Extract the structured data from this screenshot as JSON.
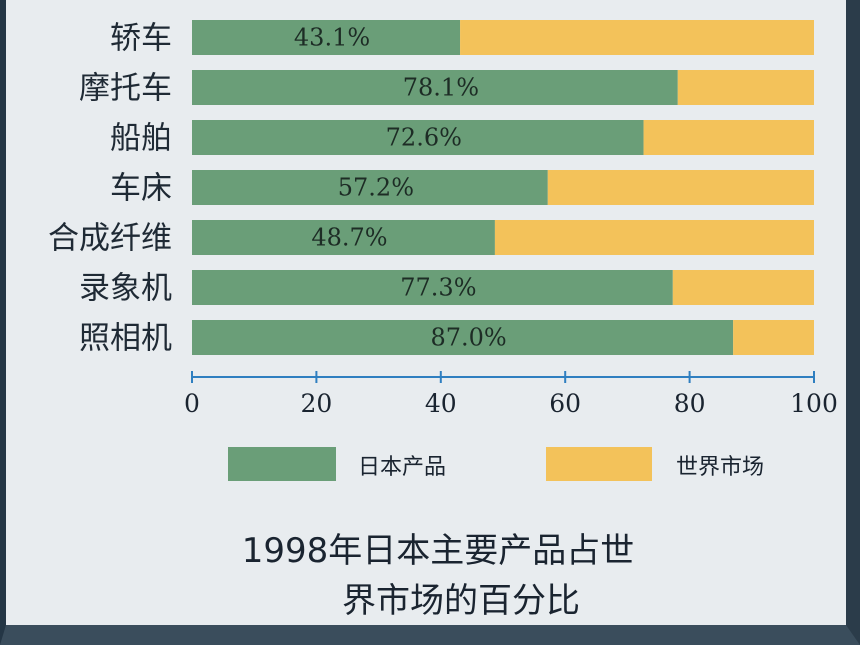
{
  "chart_data": {
    "type": "bar",
    "stacked": true,
    "orientation": "horizontal",
    "categories": [
      "轿车",
      "摩托车",
      "船舶",
      "车床",
      "合成纤维",
      "录象机",
      "照相机"
    ],
    "series": [
      {
        "name": "日本产品",
        "values": [
          43.1,
          78.1,
          72.6,
          57.2,
          48.7,
          77.3,
          87.0
        ],
        "color": "#6a9e78"
      },
      {
        "name": "世界市场",
        "values": [
          56.9,
          21.9,
          27.4,
          42.8,
          51.3,
          22.7,
          13.0
        ],
        "color": "#f3c25a"
      }
    ],
    "data_labels": [
      "43.1%",
      "78.1%",
      "72.6%",
      "57.2%",
      "48.7%",
      "77.3%",
      "87.0%"
    ],
    "xlim": [
      0,
      100
    ],
    "xticks": [
      "0",
      "20",
      "40",
      "60",
      "80",
      "100"
    ],
    "title_lines": [
      "1998年日本主要产品占世",
      "界市场的百分比"
    ],
    "legend_position": "bottom",
    "grid": false
  }
}
